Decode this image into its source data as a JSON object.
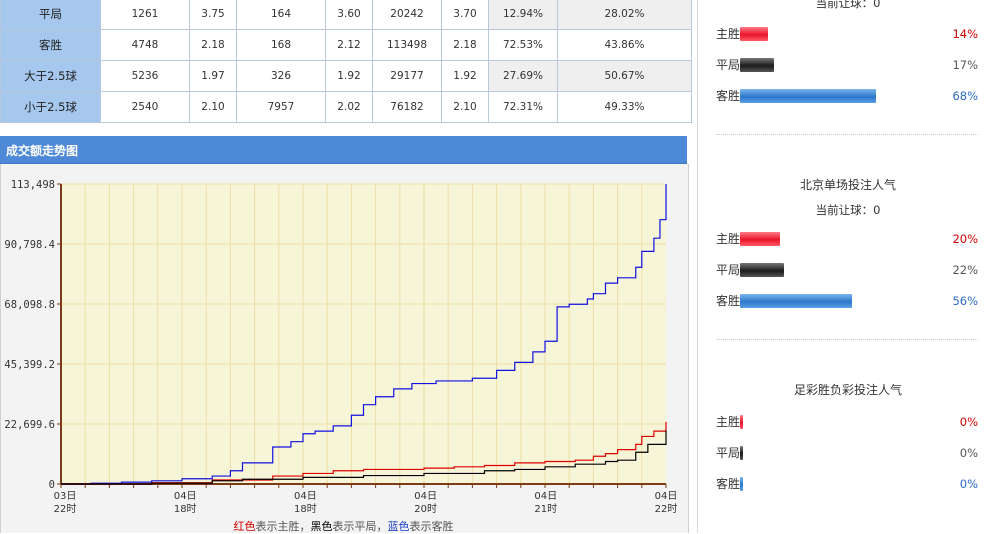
{
  "odds_table": {
    "rows": [
      {
        "label": "平局",
        "c1": "1261",
        "c2": "3.75",
        "c3": "164",
        "c4": "3.60",
        "c5": "20242",
        "c6": "3.70",
        "c7": "12.94%",
        "c8": "28.02%"
      },
      {
        "label": "客胜",
        "c1": "4748",
        "c2": "2.18",
        "c3": "168",
        "c4": "2.12",
        "c5": "113498",
        "c6": "2.18",
        "c7": "72.53%",
        "c8": "43.86%"
      },
      {
        "label": "大于2.5球",
        "c1": "5236",
        "c2": "1.97",
        "c3": "326",
        "c4": "1.92",
        "c5": "29177",
        "c6": "1.92",
        "c7": "27.69%",
        "c8": "50.67%"
      },
      {
        "label": "小于2.5球",
        "c1": "2540",
        "c2": "2.10",
        "c3": "7957",
        "c4": "2.02",
        "c5": "76182",
        "c6": "2.10",
        "c7": "72.31%",
        "c8": "49.33%"
      }
    ]
  },
  "chart_panel": {
    "title": "成交额走势图",
    "legend_note": {
      "red": "红色",
      "t1": "表示主胜，",
      "black": "黑色",
      "t2": "表示平局，",
      "blue": "蓝色",
      "t3": "表示客胜"
    }
  },
  "chart_data": {
    "type": "line",
    "title": "",
    "xlabel": "",
    "ylabel": "",
    "ylim": [
      0,
      113498
    ],
    "y_ticks": [
      "0",
      "22,699.6",
      "45,399.2",
      "68,098.8",
      "90,798.4",
      "113,498"
    ],
    "x_ticks": [
      {
        "day": "03日",
        "hour": "22时"
      },
      {
        "day": "04日",
        "hour": "18时"
      },
      {
        "day": "04日",
        "hour": "18时"
      },
      {
        "day": "04日",
        "hour": "20时"
      },
      {
        "day": "04日",
        "hour": "21时"
      },
      {
        "day": "04日",
        "hour": "22时"
      }
    ],
    "grid": true,
    "series": [
      {
        "name": "客胜",
        "color": "#1010e0",
        "x": [
          0,
          5,
          10,
          15,
          20,
          25,
          28,
          30,
          35,
          38,
          40,
          42,
          45,
          48,
          50,
          52,
          55,
          58,
          60,
          62,
          65,
          68,
          72,
          75,
          78,
          80,
          82,
          84,
          85,
          87,
          88,
          90,
          92,
          95,
          96,
          98,
          99,
          100
        ],
        "values": [
          0,
          300,
          700,
          1200,
          2000,
          3000,
          5000,
          8000,
          14000,
          16000,
          19000,
          20000,
          22000,
          26000,
          30000,
          33000,
          36000,
          38000,
          38000,
          39000,
          39000,
          40000,
          43000,
          46000,
          50000,
          54000,
          67000,
          68000,
          68000,
          70000,
          72000,
          76000,
          78000,
          82000,
          88000,
          93000,
          100000,
          113498
        ]
      },
      {
        "name": "主胜",
        "color": "#e00000",
        "x": [
          0,
          15,
          25,
          35,
          40,
          45,
          50,
          55,
          60,
          65,
          70,
          75,
          80,
          85,
          88,
          90,
          92,
          95,
          96,
          98,
          100
        ],
        "values": [
          0,
          500,
          1500,
          3000,
          4000,
          5000,
          5500,
          5500,
          6000,
          6500,
          7000,
          8000,
          8500,
          9000,
          10500,
          11500,
          13000,
          15000,
          18000,
          20000,
          23500
        ]
      },
      {
        "name": "平局",
        "color": "#000000",
        "x": [
          0,
          15,
          25,
          30,
          40,
          50,
          60,
          70,
          75,
          80,
          85,
          90,
          92,
          95,
          97,
          100
        ],
        "values": [
          0,
          300,
          1200,
          1800,
          2500,
          3200,
          4000,
          5000,
          5500,
          6500,
          7500,
          8500,
          9000,
          12000,
          15000,
          20242
        ]
      }
    ]
  },
  "right_panel": {
    "sections": [
      {
        "title": "",
        "subtitle": "当前让球：0",
        "bars": [
          {
            "label": "主胜",
            "pct": "14%",
            "value": 14,
            "color": "red"
          },
          {
            "label": "平局",
            "pct": "17%",
            "value": 17,
            "color": "black"
          },
          {
            "label": "客胜",
            "pct": "68%",
            "value": 68,
            "color": "blue"
          }
        ]
      },
      {
        "title": "北京单场投注人气",
        "subtitle": "当前让球：0",
        "bars": [
          {
            "label": "主胜",
            "pct": "20%",
            "value": 20,
            "color": "red"
          },
          {
            "label": "平局",
            "pct": "22%",
            "value": 22,
            "color": "black"
          },
          {
            "label": "客胜",
            "pct": "56%",
            "value": 56,
            "color": "blue"
          }
        ]
      },
      {
        "title": "足彩胜负彩投注人气",
        "subtitle": "",
        "bars": [
          {
            "label": "主胜",
            "pct": "0%",
            "value": 0,
            "color": "red"
          },
          {
            "label": "平局",
            "pct": "0%",
            "value": 0,
            "color": "black"
          },
          {
            "label": "客胜",
            "pct": "0%",
            "value": 0,
            "color": "blue"
          }
        ]
      }
    ]
  }
}
